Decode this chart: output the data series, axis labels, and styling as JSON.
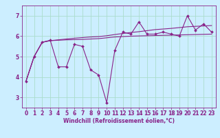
{
  "title": "",
  "xlabel": "Windchill (Refroidissement éolien,°C)",
  "x": [
    0,
    1,
    2,
    3,
    4,
    5,
    6,
    7,
    8,
    9,
    10,
    11,
    12,
    13,
    14,
    15,
    16,
    17,
    18,
    19,
    20,
    21,
    22,
    23
  ],
  "line1": [
    3.8,
    5.0,
    5.7,
    5.8,
    4.5,
    4.5,
    5.6,
    5.5,
    4.35,
    4.1,
    2.75,
    5.3,
    6.2,
    6.1,
    6.7,
    6.1,
    6.1,
    6.2,
    6.1,
    6.0,
    7.0,
    6.3,
    6.6,
    6.2
  ],
  "line2": [
    3.8,
    5.0,
    5.7,
    5.78,
    5.82,
    5.86,
    5.9,
    5.93,
    5.96,
    5.98,
    6.02,
    6.08,
    6.13,
    6.18,
    6.22,
    6.27,
    6.32,
    6.35,
    6.38,
    6.42,
    6.46,
    6.48,
    6.5,
    6.52
  ],
  "line3": [
    3.8,
    5.0,
    5.7,
    5.78,
    5.8,
    5.82,
    5.83,
    5.84,
    5.86,
    5.88,
    5.92,
    5.96,
    5.98,
    6.0,
    6.01,
    6.02,
    6.03,
    6.04,
    6.05,
    6.06,
    6.07,
    6.08,
    6.09,
    6.1
  ],
  "line_color": "#882288",
  "bg_color": "#cceeff",
  "grid_color": "#aaddcc",
  "ylim": [
    2.5,
    7.5
  ],
  "yticks": [
    3,
    4,
    5,
    6,
    7
  ],
  "xlim": [
    -0.5,
    23.5
  ],
  "xticks": [
    0,
    1,
    2,
    3,
    4,
    5,
    6,
    7,
    8,
    9,
    10,
    11,
    12,
    13,
    14,
    15,
    16,
    17,
    18,
    19,
    20,
    21,
    22,
    23
  ],
  "marker_size": 2.0,
  "linewidth": 0.8,
  "xlabel_fontsize": 5.5,
  "tick_fontsize": 5.5
}
